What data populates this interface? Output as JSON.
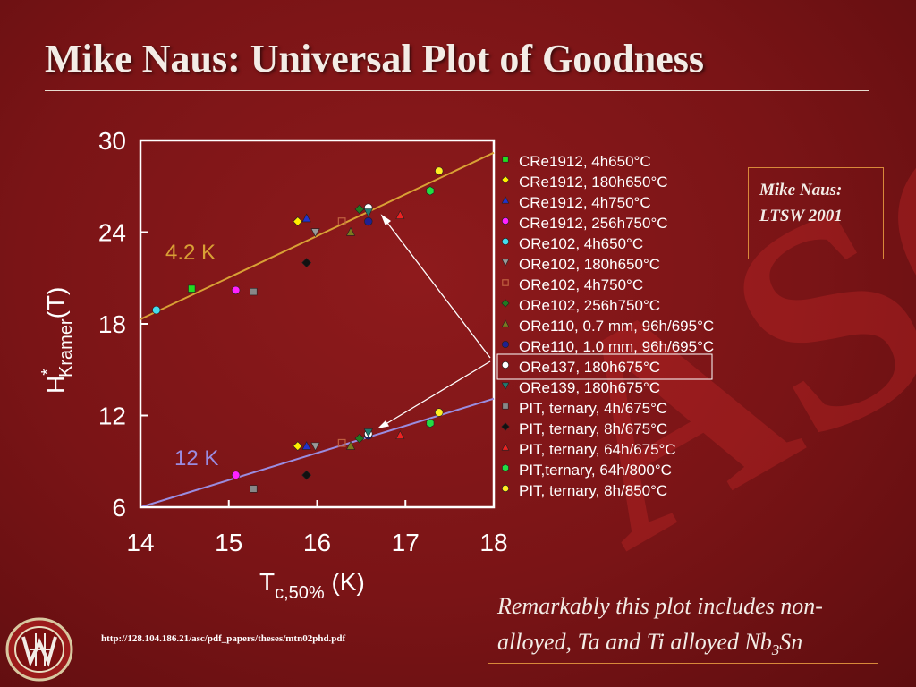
{
  "title": "Mike Naus: Universal Plot of Goodness",
  "credit": {
    "line1": "Mike Naus:",
    "line2": "LTSW 2001"
  },
  "note": {
    "line1": "Remarkably this plot includes non-",
    "line2_pre": "alloyed, Ta and Ti alloyed Nb",
    "line2_sub": "3",
    "line2_post": "Sn"
  },
  "url": "http://128.104.186.21/asc/pdf_papers/theses/mtn02phd.pdf",
  "watermark": "ASC",
  "colors": {
    "line_42K": "#d9a035",
    "line_12K": "#9a8ce0",
    "frame": "#ffffff"
  },
  "chart_data": {
    "type": "scatter",
    "x": {
      "min": 14,
      "max": 18,
      "ticks": [
        14,
        15,
        16,
        17,
        18
      ]
    },
    "y": {
      "min": 6,
      "max": 30,
      "ticks": [
        6,
        12,
        18,
        24,
        30
      ]
    },
    "xlabel": {
      "main": "T",
      "sub": "c,50%",
      "unit": " (K)"
    },
    "ylabel": {
      "main": "H",
      "sup": "*",
      "sub": "Kramer",
      "unit": "(T)"
    },
    "fit_lines": [
      {
        "name": "4.2 K",
        "color": "#d9a035",
        "from": [
          14,
          18.3
        ],
        "to": [
          18,
          29.2
        ]
      },
      {
        "name": "12 K",
        "color": "#9a8ce0",
        "from": [
          14,
          6.0
        ],
        "to": [
          18,
          13.1
        ]
      }
    ],
    "series": [
      {
        "name": "CRe1912, 4h650°C",
        "marker": "square",
        "color": "#22dd22",
        "points": [
          [
            14.58,
            20.3
          ]
        ]
      },
      {
        "name": "CRe1912, 180h650°C",
        "marker": "diamond",
        "color": "#ffee00",
        "points": [
          [
            15.78,
            24.7
          ],
          [
            15.78,
            10.0
          ]
        ]
      },
      {
        "name": "CRe1912, 4h750°C",
        "marker": "triangle-up",
        "color": "#2233cc",
        "points": [
          [
            15.88,
            24.9
          ],
          [
            15.88,
            10.0
          ]
        ]
      },
      {
        "name": "CRe1912, 256h750°C",
        "marker": "circle",
        "color": "#ff22ff",
        "points": [
          [
            15.08,
            20.2
          ],
          [
            15.08,
            8.1
          ]
        ]
      },
      {
        "name": "ORe102, 4h650°C",
        "marker": "circle",
        "color": "#44ddee",
        "points": [
          [
            14.18,
            18.9
          ]
        ]
      },
      {
        "name": "ORe102, 180h650°C",
        "marker": "triangle-down",
        "color": "#9a9a9a",
        "points": [
          [
            15.98,
            24.0
          ],
          [
            15.98,
            10.0
          ]
        ]
      },
      {
        "name": "ORe102, 4h750°C",
        "marker": "square-open",
        "color": "#c06040",
        "points": [
          [
            16.28,
            24.7
          ],
          [
            16.28,
            10.2
          ]
        ]
      },
      {
        "name": "ORe102, 256h750°C",
        "marker": "diamond",
        "color": "#207a20",
        "points": [
          [
            16.48,
            25.5
          ],
          [
            16.48,
            10.5
          ]
        ]
      },
      {
        "name": "ORe110, 0.7 mm, 96h/695°C",
        "marker": "triangle-up",
        "color": "#7a7a20",
        "points": [
          [
            16.38,
            24.0
          ],
          [
            16.38,
            10.0
          ]
        ]
      },
      {
        "name": "ORe110, 1.0 mm, 96h/695°C",
        "marker": "circle",
        "color": "#202090",
        "points": [
          [
            16.58,
            24.7
          ],
          [
            16.58,
            10.7
          ]
        ]
      },
      {
        "name": "ORe137, 180h675°C",
        "marker": "circle",
        "color": "#ffffff",
        "points": [
          [
            16.58,
            25.6
          ],
          [
            16.58,
            10.8
          ]
        ]
      },
      {
        "name": "ORe139, 180h675°C",
        "marker": "triangle-down",
        "color": "#207a70",
        "points": [
          [
            16.58,
            25.3
          ],
          [
            16.58,
            10.9
          ]
        ]
      },
      {
        "name": "PIT, ternary, 4h/675°C",
        "marker": "square",
        "color": "#888888",
        "points": [
          [
            15.28,
            20.1
          ],
          [
            15.28,
            7.2
          ]
        ]
      },
      {
        "name": "PIT, ternary, 8h/675°C",
        "marker": "diamond",
        "color": "#111111",
        "points": [
          [
            15.88,
            22.0
          ],
          [
            15.88,
            8.1
          ]
        ]
      },
      {
        "name": "PIT, ternary, 64h/675°C",
        "marker": "triangle-up",
        "color": "#ee2222",
        "points": [
          [
            16.94,
            25.1
          ],
          [
            16.94,
            10.7
          ]
        ]
      },
      {
        "name": "PIT,ternary, 64h/800°C",
        "marker": "hexagon",
        "color": "#22dd44",
        "points": [
          [
            17.28,
            26.7
          ],
          [
            17.28,
            11.5
          ]
        ]
      },
      {
        "name": "PIT, ternary, 8h/850°C",
        "marker": "circle",
        "color": "#ffee22",
        "points": [
          [
            17.38,
            28.0
          ],
          [
            17.38,
            12.2
          ]
        ]
      }
    ],
    "annotation": "arrows point from the ORe137 legend entry to its two data points"
  }
}
